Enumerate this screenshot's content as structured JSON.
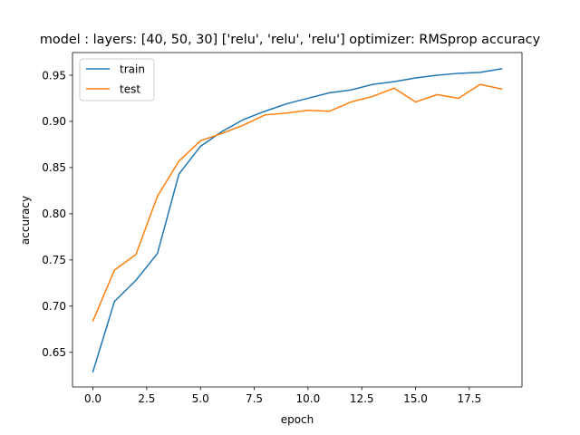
{
  "chart_data": {
    "type": "line",
    "title": "model : layers: [40, 50, 30] ['relu', 'relu', 'relu'] optimizer: RMSprop accuracy",
    "xlabel": "epoch",
    "ylabel": "accuracy",
    "xlim": [
      -0.95,
      19.95
    ],
    "ylim": [
      0.6125,
      0.9745
    ],
    "x_ticks": [
      0.0,
      2.5,
      5.0,
      7.5,
      10.0,
      12.5,
      15.0,
      17.5
    ],
    "x_tick_labels": [
      "0.0",
      "2.5",
      "5.0",
      "7.5",
      "10.0",
      "12.5",
      "15.0",
      "17.5"
    ],
    "y_ticks": [
      0.65,
      0.7,
      0.75,
      0.8,
      0.85,
      0.9,
      0.95
    ],
    "y_tick_labels": [
      "0.65",
      "0.70",
      "0.75",
      "0.80",
      "0.85",
      "0.90",
      "0.95"
    ],
    "grid": false,
    "legend_position": "upper-left",
    "x": [
      0,
      1,
      2,
      3,
      4,
      5,
      6,
      7,
      8,
      9,
      10,
      11,
      12,
      13,
      14,
      15,
      16,
      17,
      18,
      19
    ],
    "series": [
      {
        "name": "train",
        "color": "#1f77b4",
        "values": [
          0.629,
          0.705,
          0.728,
          0.757,
          0.843,
          0.873,
          0.889,
          0.902,
          0.911,
          0.919,
          0.925,
          0.931,
          0.934,
          0.94,
          0.943,
          0.947,
          0.95,
          0.952,
          0.953,
          0.957
        ]
      },
      {
        "name": "test",
        "color": "#ff7f0e",
        "values": [
          0.684,
          0.739,
          0.756,
          0.819,
          0.857,
          0.879,
          0.887,
          0.896,
          0.907,
          0.909,
          0.912,
          0.911,
          0.921,
          0.927,
          0.936,
          0.921,
          0.929,
          0.925,
          0.94,
          0.935
        ]
      }
    ]
  }
}
